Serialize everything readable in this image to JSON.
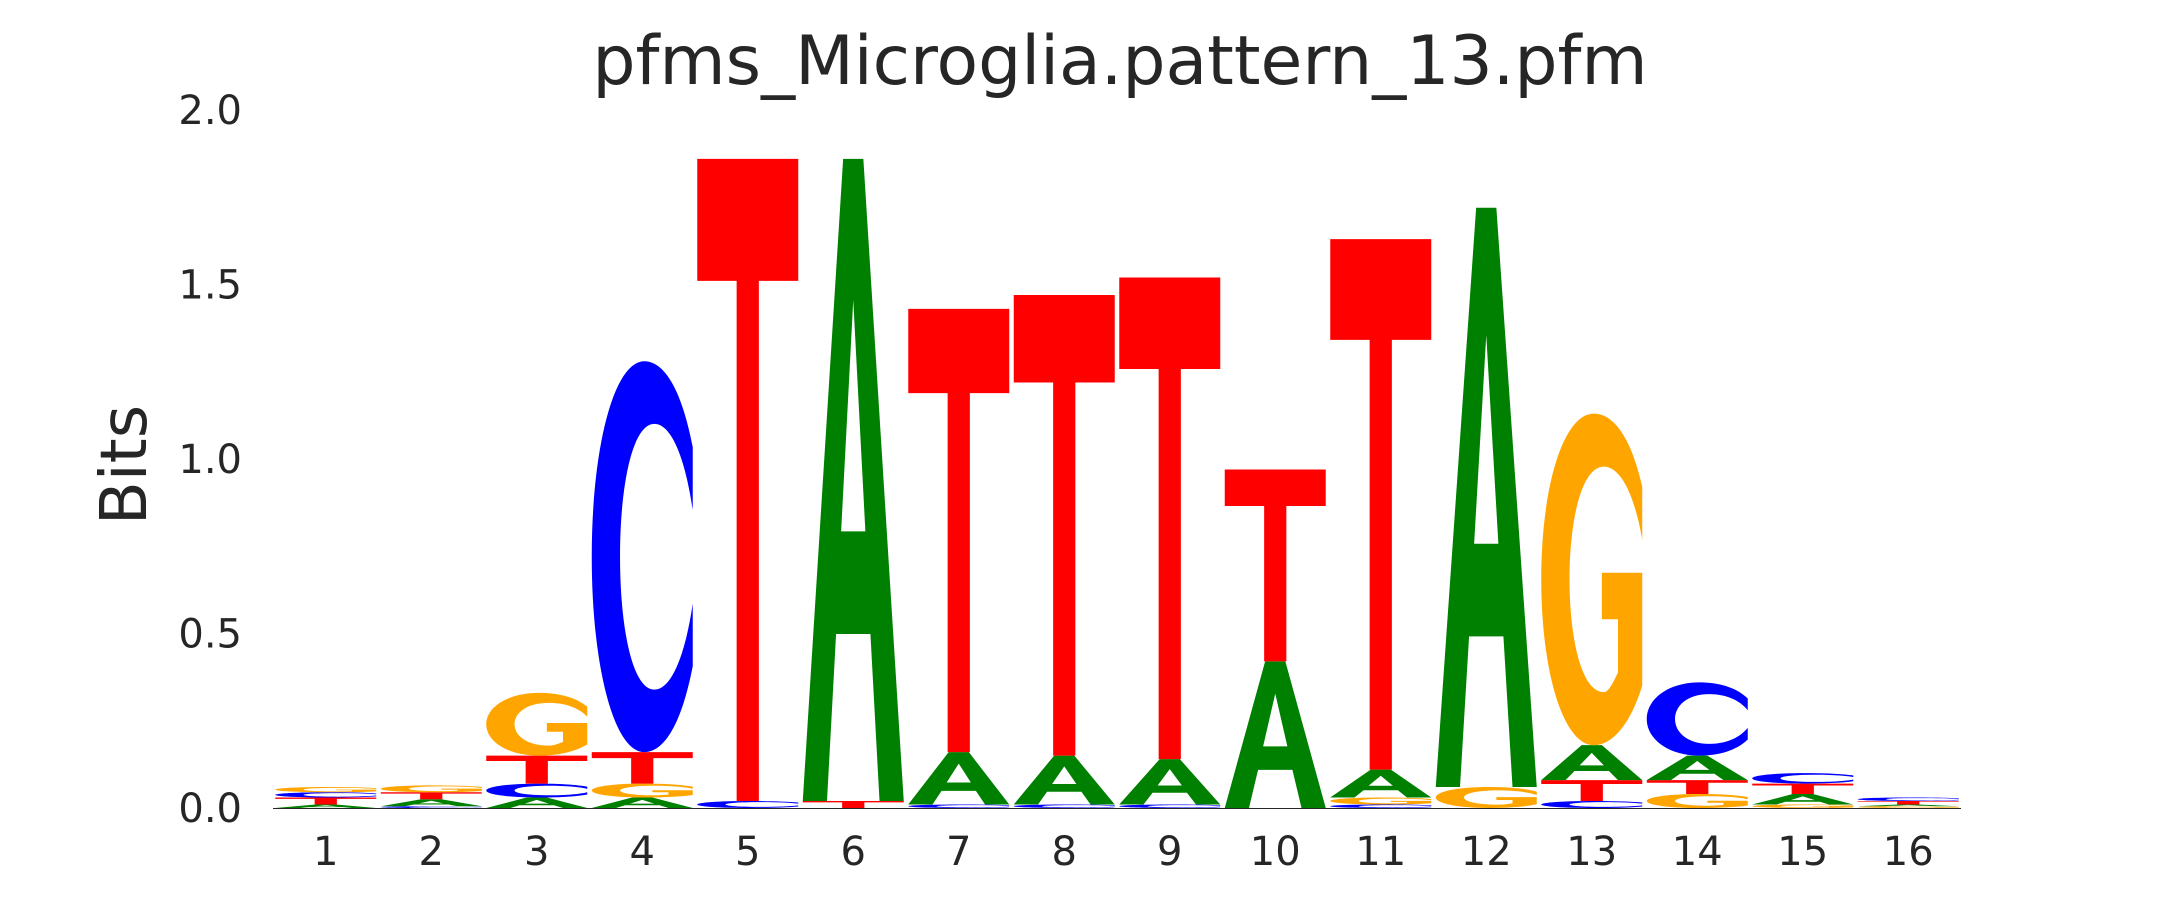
{
  "chart_data": {
    "type": "sequence-logo",
    "title": "pfms_Microglia.pattern_13.pfm",
    "xlabel": "",
    "ylabel": "Bits",
    "ylim": [
      0,
      2.0
    ],
    "yticks": [
      "0.0",
      "0.5",
      "1.0",
      "1.5",
      "2.0"
    ],
    "grid": false,
    "colors": {
      "A": "#008000",
      "C": "#0000ff",
      "G": "#ffa500",
      "T": "#ff0000"
    },
    "positions": [
      {
        "label": "1",
        "stack": [
          [
            "A",
            0.01
          ],
          [
            "T",
            0.02
          ],
          [
            "C",
            0.015
          ],
          [
            "G",
            0.015
          ]
        ]
      },
      {
        "label": "2",
        "stack": [
          [
            "C",
            0.005
          ],
          [
            "A",
            0.02
          ],
          [
            "T",
            0.02
          ],
          [
            "G",
            0.02
          ]
        ]
      },
      {
        "label": "3",
        "stack": [
          [
            "A",
            0.03
          ],
          [
            "C",
            0.04
          ],
          [
            "T",
            0.08
          ],
          [
            "G",
            0.18
          ]
        ]
      },
      {
        "label": "4",
        "stack": [
          [
            "A",
            0.03
          ],
          [
            "G",
            0.04
          ],
          [
            "T",
            0.09
          ],
          [
            "C",
            1.12
          ]
        ]
      },
      {
        "label": "5",
        "stack": [
          [
            "C",
            0.02
          ],
          [
            "T",
            1.84
          ]
        ]
      },
      {
        "label": "6",
        "stack": [
          [
            "T",
            0.02
          ],
          [
            "A",
            1.84
          ]
        ]
      },
      {
        "label": "7",
        "stack": [
          [
            "C",
            0.01
          ],
          [
            "A",
            0.15
          ],
          [
            "T",
            1.27
          ]
        ]
      },
      {
        "label": "8",
        "stack": [
          [
            "C",
            0.01
          ],
          [
            "A",
            0.14
          ],
          [
            "T",
            1.32
          ]
        ]
      },
      {
        "label": "9",
        "stack": [
          [
            "C",
            0.01
          ],
          [
            "A",
            0.13
          ],
          [
            "T",
            1.38
          ]
        ]
      },
      {
        "label": "10",
        "stack": [
          [
            "A",
            0.42
          ],
          [
            "T",
            0.55
          ]
        ]
      },
      {
        "label": "11",
        "stack": [
          [
            "C",
            0.01
          ],
          [
            "G",
            0.02
          ],
          [
            "A",
            0.08
          ],
          [
            "T",
            1.52
          ]
        ]
      },
      {
        "label": "12",
        "stack": [
          [
            "G",
            0.06
          ],
          [
            "A",
            1.66
          ]
        ]
      },
      {
        "label": "13",
        "stack": [
          [
            "C",
            0.02
          ],
          [
            "T",
            0.06
          ],
          [
            "A",
            0.1
          ],
          [
            "G",
            0.95
          ]
        ]
      },
      {
        "label": "14",
        "stack": [
          [
            "G",
            0.04
          ],
          [
            "T",
            0.04
          ],
          [
            "A",
            0.07
          ],
          [
            "C",
            0.21
          ]
        ]
      },
      {
        "label": "15",
        "stack": [
          [
            "G",
            0.01
          ],
          [
            "A",
            0.03
          ],
          [
            "T",
            0.03
          ],
          [
            "C",
            0.03
          ]
        ]
      },
      {
        "label": "16",
        "stack": [
          [
            "G",
            0.005
          ],
          [
            "A",
            0.005
          ],
          [
            "T",
            0.01
          ],
          [
            "C",
            0.01
          ]
        ]
      }
    ]
  }
}
